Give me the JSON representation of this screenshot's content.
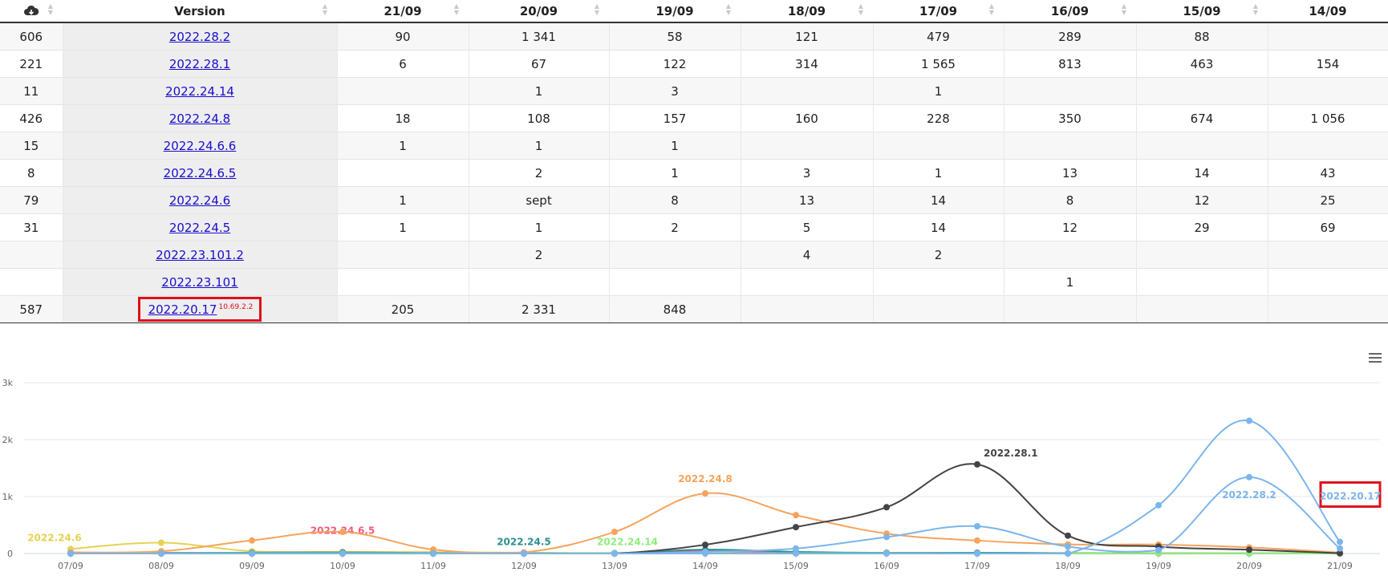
{
  "table": {
    "download_icon": "cloud-download-icon",
    "headers": [
      "Version",
      "21/09",
      "20/09",
      "19/09",
      "18/09",
      "17/09",
      "16/09",
      "15/09",
      "14/09"
    ],
    "rows": [
      {
        "count": "606",
        "version": "2022.28.2",
        "sup": "",
        "values": [
          "90",
          "1 341",
          "58",
          "121",
          "479",
          "289",
          "88",
          ""
        ]
      },
      {
        "count": "221",
        "version": "2022.28.1",
        "sup": "",
        "values": [
          "6",
          "67",
          "122",
          "314",
          "1 565",
          "813",
          "463",
          "154"
        ]
      },
      {
        "count": "11",
        "version": "2022.24.14",
        "sup": "",
        "values": [
          "",
          "1",
          "3",
          "",
          "1",
          "",
          "",
          ""
        ]
      },
      {
        "count": "426",
        "version": "2022.24.8",
        "sup": "",
        "values": [
          "18",
          "108",
          "157",
          "160",
          "228",
          "350",
          "674",
          "1 056"
        ]
      },
      {
        "count": "15",
        "version": "2022.24.6.6",
        "sup": "",
        "values": [
          "1",
          "1",
          "1",
          "",
          "",
          "",
          "",
          ""
        ]
      },
      {
        "count": "8",
        "version": "2022.24.6.5",
        "sup": "",
        "values": [
          "",
          "2",
          "1",
          "3",
          "1",
          "13",
          "14",
          "43"
        ]
      },
      {
        "count": "79",
        "version": "2022.24.6",
        "sup": "",
        "values": [
          "1",
          "sept",
          "8",
          "13",
          "14",
          "8",
          "12",
          "25"
        ]
      },
      {
        "count": "31",
        "version": "2022.24.5",
        "sup": "",
        "values": [
          "1",
          "1",
          "2",
          "5",
          "14",
          "12",
          "29",
          "69"
        ]
      },
      {
        "count": "",
        "version": "2022.23.101.2",
        "sup": "",
        "values": [
          "",
          "2",
          "",
          "4",
          "2",
          "",
          "",
          ""
        ]
      },
      {
        "count": "",
        "version": "2022.23.101",
        "sup": "",
        "values": [
          "",
          "",
          "",
          "",
          "",
          "1",
          "",
          ""
        ]
      },
      {
        "count": "587",
        "version": "2022.20.17",
        "sup": "10.69.2.2",
        "values": [
          "205",
          "2 331",
          "848",
          "",
          "",
          "",
          "",
          ""
        ]
      }
    ],
    "highlight_color": "#e0101a"
  },
  "chart_data": {
    "type": "line",
    "smooth": true,
    "x": [
      "07/09",
      "08/09",
      "09/09",
      "10/09",
      "11/09",
      "12/09",
      "13/09",
      "14/09",
      "15/09",
      "16/09",
      "17/09",
      "18/09",
      "19/09",
      "20/09",
      "21/09"
    ],
    "y_ticks": [
      "0",
      "1k",
      "2k",
      "3k"
    ],
    "ylim": [
      0,
      3000
    ],
    "grid": true,
    "series": [
      {
        "name": "2022.24.6",
        "color": "#e4d354",
        "values": [
          80,
          190,
          40,
          30,
          25,
          15,
          10,
          25,
          12,
          14,
          13,
          8,
          8,
          5,
          1
        ],
        "label_index": 0
      },
      {
        "name": "2022.24.6.5",
        "color": "#f15c80",
        "values": [
          10,
          15,
          10,
          8,
          5,
          5,
          5,
          43,
          14,
          13,
          3,
          3,
          1,
          2,
          0
        ],
        "label_index": 3
      },
      {
        "name": "2022.24.5",
        "color": "#2b908f",
        "values": [
          5,
          10,
          15,
          20,
          10,
          10,
          5,
          69,
          29,
          12,
          14,
          5,
          2,
          1,
          1
        ],
        "label_index": 5
      },
      {
        "name": "2022.24.14",
        "color": "#90ed7d",
        "values": [
          5,
          5,
          5,
          5,
          5,
          5,
          5,
          5,
          5,
          5,
          1,
          1,
          3,
          1,
          0
        ],
        "label_index": 6
      },
      {
        "name": "2022.24.8",
        "color": "#f7a35c",
        "values": [
          20,
          40,
          230,
          380,
          70,
          20,
          380,
          1056,
          674,
          350,
          228,
          160,
          157,
          108,
          18
        ],
        "label_index": 7
      },
      {
        "name": "2022.28.1",
        "color": "#434348",
        "values": [
          0,
          0,
          0,
          0,
          0,
          0,
          0,
          154,
          463,
          813,
          1565,
          314,
          122,
          67,
          6
        ],
        "label_index": 10
      },
      {
        "name": "2022.28.2",
        "color": "#7cb5ec",
        "values": [
          0,
          0,
          0,
          0,
          0,
          0,
          0,
          30,
          88,
          289,
          479,
          121,
          58,
          1341,
          90
        ],
        "label_index": 13
      },
      {
        "name": "2022.20.17",
        "color": "#7cb5ec",
        "values": [
          0,
          0,
          0,
          0,
          0,
          0,
          0,
          0,
          0,
          0,
          0,
          0,
          848,
          2331,
          205
        ],
        "label_index": 14
      }
    ]
  }
}
